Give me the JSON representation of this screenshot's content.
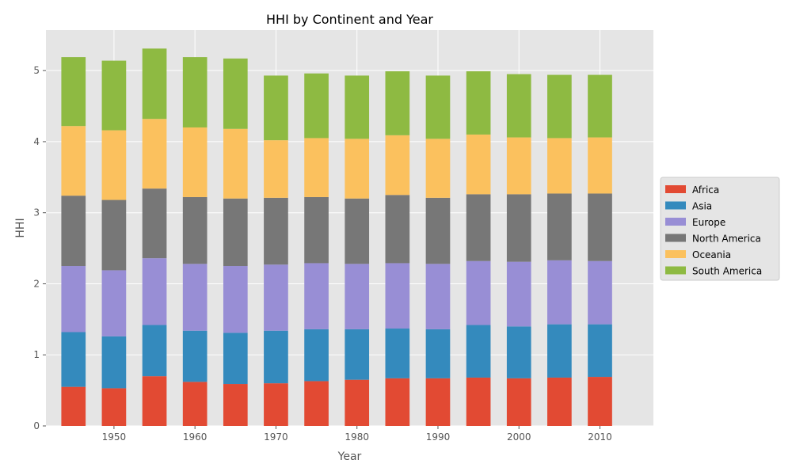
{
  "chart_data": {
    "type": "bar",
    "stacked": true,
    "title": "HHI by Continent and Year",
    "xlabel": "Year",
    "ylabel": "HHI",
    "x": [
      1945,
      1950,
      1955,
      1960,
      1965,
      1970,
      1975,
      1980,
      1985,
      1990,
      1995,
      2000,
      2005,
      2010
    ],
    "xlim": [
      1941.6,
      2016.6
    ],
    "ylim": [
      0,
      5.57
    ],
    "xticks": [
      1950,
      1960,
      1970,
      1980,
      1990,
      2000,
      2010
    ],
    "yticks": [
      0,
      1,
      2,
      3,
      4,
      5
    ],
    "grid": true,
    "legend_position": "center-right, outside",
    "series": [
      {
        "name": "Africa",
        "color": "#E24A33",
        "values": [
          0.55,
          0.53,
          0.7,
          0.62,
          0.59,
          0.6,
          0.63,
          0.65,
          0.67,
          0.67,
          0.68,
          0.67,
          0.68,
          0.69
        ]
      },
      {
        "name": "Asia",
        "color": "#348ABD",
        "values": [
          0.77,
          0.73,
          0.72,
          0.72,
          0.72,
          0.74,
          0.73,
          0.71,
          0.7,
          0.69,
          0.74,
          0.73,
          0.75,
          0.74
        ]
      },
      {
        "name": "Europe",
        "color": "#988ED5",
        "values": [
          0.93,
          0.93,
          0.94,
          0.94,
          0.94,
          0.93,
          0.93,
          0.92,
          0.92,
          0.92,
          0.9,
          0.91,
          0.9,
          0.89
        ]
      },
      {
        "name": "North America",
        "color": "#777777",
        "values": [
          0.99,
          0.99,
          0.98,
          0.94,
          0.95,
          0.94,
          0.93,
          0.92,
          0.96,
          0.93,
          0.94,
          0.95,
          0.94,
          0.95
        ]
      },
      {
        "name": "Oceania",
        "color": "#FBC15E",
        "values": [
          0.98,
          0.98,
          0.98,
          0.98,
          0.98,
          0.81,
          0.83,
          0.84,
          0.84,
          0.83,
          0.84,
          0.8,
          0.78,
          0.79
        ]
      },
      {
        "name": "South America",
        "color": "#8EBA42",
        "values": [
          0.97,
          0.98,
          0.99,
          0.99,
          0.99,
          0.91,
          0.91,
          0.89,
          0.9,
          0.89,
          0.89,
          0.89,
          0.89,
          0.88
        ]
      }
    ]
  }
}
